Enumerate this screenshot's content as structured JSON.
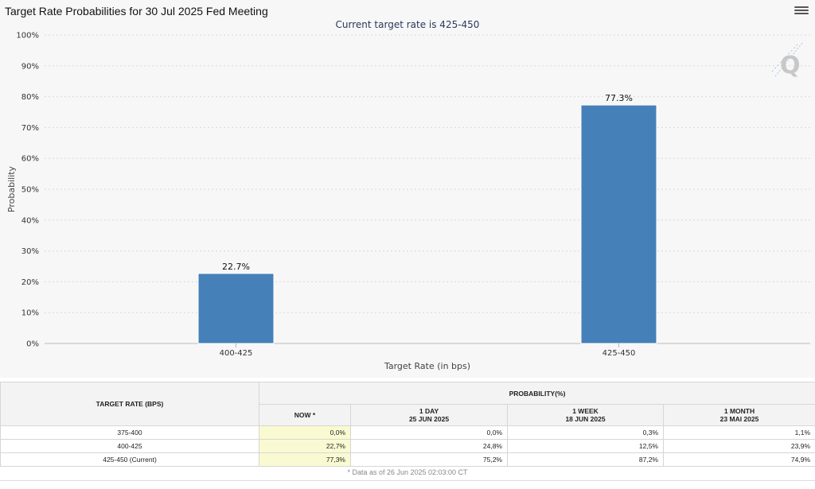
{
  "title": "Target Rate Probabilities for 30 Jul 2025 Fed Meeting",
  "subtitle": "Current target rate is 425-450",
  "chart_data": {
    "type": "bar",
    "categories": [
      "400-425",
      "425-450"
    ],
    "values": [
      22.7,
      77.3
    ],
    "data_labels": [
      "22.7%",
      "77.3%"
    ],
    "xlabel": "Target Rate (in bps)",
    "ylabel": "Probability",
    "ylim": [
      0,
      100
    ],
    "yticks": [
      "0%",
      "10%",
      "20%",
      "30%",
      "40%",
      "50%",
      "60%",
      "70%",
      "80%",
      "90%",
      "100%"
    ],
    "grid": true,
    "bar_color": "#4680b8"
  },
  "table": {
    "header_target": "TARGET RATE (BPS)",
    "header_probability": "PROBABILITY(%)",
    "columns": [
      {
        "line1": "NOW *",
        "line2": ""
      },
      {
        "line1": "1 DAY",
        "line2": "25 JUN 2025"
      },
      {
        "line1": "1 WEEK",
        "line2": "18 JUN 2025"
      },
      {
        "line1": "1 MONTH",
        "line2": "23 MAI 2025"
      }
    ],
    "rows": [
      {
        "rate": "375-400",
        "values": [
          "0,0%",
          "0,0%",
          "0,3%",
          "1,1%"
        ]
      },
      {
        "rate": "400-425",
        "values": [
          "22,7%",
          "24,8%",
          "12,5%",
          "23,9%"
        ]
      },
      {
        "rate": "425-450 (Current)",
        "values": [
          "77,3%",
          "75,2%",
          "87,2%",
          "74,9%"
        ]
      }
    ],
    "note": "* Data as of 26 Jun 2025 02:03:00 CT"
  },
  "icons": {
    "menu": "hamburger-menu-icon",
    "watermark": "q-logo"
  }
}
